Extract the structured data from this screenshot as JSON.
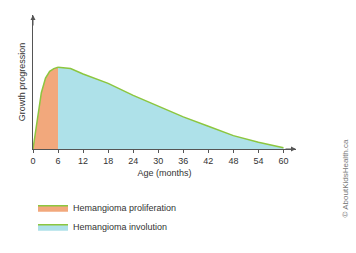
{
  "chart_data": {
    "type": "area",
    "x_label": "Age (months)",
    "y_label": "Growth progression",
    "x": [
      0,
      1,
      2,
      3,
      4,
      5,
      6,
      9,
      12,
      18,
      24,
      30,
      36,
      42,
      48,
      54,
      60
    ],
    "series": [
      {
        "name": "Hemangioma proliferation",
        "color": "#f2a87c",
        "values": [
          0,
          21,
          42,
          53,
          58,
          60,
          61,
          null,
          null,
          null,
          null,
          null,
          null,
          null,
          null,
          null,
          null
        ]
      },
      {
        "name": "Hemangioma involution",
        "color": "#aee1e9",
        "values": [
          null,
          null,
          null,
          null,
          null,
          null,
          61,
          60,
          56,
          49,
          40,
          32,
          24,
          17,
          10,
          5,
          1
        ]
      }
    ],
    "xlim": [
      0,
      63
    ],
    "xticks": [
      0,
      6,
      12,
      18,
      24,
      30,
      36,
      42,
      48,
      54,
      60
    ],
    "ylim": [
      0,
      100
    ],
    "grid": false,
    "legend": "bottom",
    "tick_labels": "x",
    "annotations": [
      "© AboutKidsHealth.ca"
    ]
  }
}
